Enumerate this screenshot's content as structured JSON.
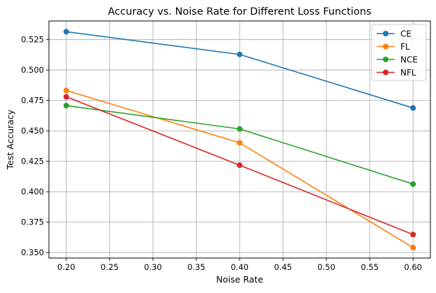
{
  "chart_data": {
    "type": "line",
    "title": "Accuracy vs. Noise Rate for Different Loss Functions",
    "xlabel": "Noise Rate",
    "ylabel": "Test Accuracy",
    "xlim": [
      0.18,
      0.62
    ],
    "ylim": [
      0.3455,
      0.5403
    ],
    "xticks": [
      "0.20",
      "0.25",
      "0.30",
      "0.35",
      "0.40",
      "0.45",
      "0.50",
      "0.55",
      "0.60"
    ],
    "yticks": [
      "0.350",
      "0.375",
      "0.400",
      "0.425",
      "0.450",
      "0.475",
      "0.500",
      "0.525"
    ],
    "grid": true,
    "legend_position": "top-right",
    "x": [
      0.2,
      0.4,
      0.6
    ],
    "series": [
      {
        "name": "CE",
        "color": "#1f77b4",
        "values": [
          0.5315,
          0.5128,
          0.4688
        ]
      },
      {
        "name": "FL",
        "color": "#ff7f0e",
        "values": [
          0.4832,
          0.4402,
          0.3541
        ]
      },
      {
        "name": "NCE",
        "color": "#2ca02c",
        "values": [
          0.4708,
          0.4516,
          0.4063
        ]
      },
      {
        "name": "NFL",
        "color": "#d62728",
        "values": [
          0.478,
          0.4218,
          0.3648
        ]
      }
    ]
  }
}
